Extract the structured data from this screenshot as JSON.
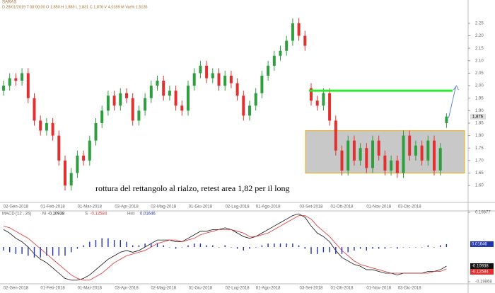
{
  "chart_data": [
    {
      "type": "candlestick",
      "title": "SARAS",
      "info": "D 28/01/2019  T 00:00:00  O 1,850  H 1,889  L 1,831  C 1,876  V 4,0189 M  Var% 1,5135",
      "categories": [
        null,
        null,
        "02-Gen-2018",
        null,
        null,
        null,
        null,
        null,
        "01-Feb-2018",
        null,
        null,
        null,
        null,
        null,
        "01-Mar-2018",
        null,
        null,
        null,
        null,
        null,
        "03-Apr-2018",
        null,
        null,
        null,
        null,
        null,
        "02-Mag-2018",
        null,
        null,
        null,
        null,
        null,
        "01-Giu-2018",
        null,
        null,
        null,
        null,
        null,
        "02-Lug-2018",
        null,
        null,
        null,
        null,
        "01-Ago-2018",
        null,
        null,
        null,
        null,
        null,
        null,
        "03-Set-2018",
        null,
        null,
        null,
        null,
        "01-Ott-2018",
        null,
        null,
        null,
        null,
        null,
        "01-Nov-2018",
        null,
        null,
        null,
        null,
        "03-Dic-2018",
        null,
        null,
        null,
        null,
        null,
        null
      ],
      "open": [
        1.98,
        2.0,
        2.03,
        2.02,
        2.05,
        1.95,
        1.86,
        1.82,
        1.85,
        1.8,
        1.7,
        1.6,
        1.65,
        1.72,
        1.7,
        1.78,
        1.85,
        1.9,
        1.96,
        1.92,
        1.97,
        1.95,
        1.86,
        1.9,
        1.95,
        2.0,
        2.02,
        1.96,
        1.98,
        1.92,
        1.9,
        2.0,
        2.05,
        2.08,
        2.03,
        2.05,
        2.0,
        2.04,
        2.01,
        1.96,
        1.88,
        1.92,
        1.97,
        2.04,
        2.08,
        2.12,
        2.14,
        2.18,
        2.25,
        2.2,
        1.99,
        1.94,
        1.92,
        1.97,
        1.86,
        1.74,
        1.66,
        1.78,
        1.7,
        1.75,
        1.67,
        1.78,
        1.72,
        1.66,
        1.7,
        1.65,
        1.8,
        1.72,
        1.76,
        1.7,
        1.78,
        1.66,
        1.85
      ],
      "high": [
        2.02,
        2.05,
        2.05,
        2.07,
        2.07,
        1.97,
        1.88,
        1.87,
        1.87,
        1.82,
        1.72,
        1.67,
        1.74,
        1.74,
        1.8,
        1.87,
        1.92,
        1.98,
        1.98,
        1.99,
        1.99,
        1.97,
        1.92,
        1.97,
        2.02,
        2.04,
        2.04,
        2.0,
        2.0,
        1.94,
        2.02,
        2.07,
        2.1,
        2.1,
        2.07,
        2.07,
        2.06,
        2.06,
        2.03,
        1.98,
        1.94,
        1.99,
        2.06,
        2.1,
        2.14,
        2.16,
        2.2,
        2.27,
        2.27,
        2.22,
        2.01,
        1.96,
        1.99,
        1.99,
        1.88,
        1.76,
        1.8,
        1.8,
        1.77,
        1.77,
        1.8,
        1.8,
        1.74,
        1.72,
        1.72,
        1.82,
        1.82,
        1.78,
        1.78,
        1.8,
        1.8,
        1.77,
        1.889
      ],
      "low": [
        1.96,
        1.98,
        2.0,
        2.0,
        1.93,
        1.84,
        1.8,
        1.8,
        1.78,
        1.68,
        1.58,
        1.58,
        1.63,
        1.68,
        1.68,
        1.76,
        1.83,
        1.88,
        1.9,
        1.9,
        1.93,
        1.84,
        1.84,
        1.88,
        1.93,
        1.98,
        1.94,
        1.94,
        1.9,
        1.88,
        1.88,
        1.98,
        2.03,
        2.01,
        2.01,
        1.98,
        1.98,
        1.99,
        1.94,
        1.86,
        1.86,
        1.9,
        1.95,
        2.02,
        2.06,
        2.1,
        2.12,
        2.16,
        2.18,
        2.14,
        1.92,
        1.9,
        1.9,
        1.84,
        1.72,
        1.64,
        1.64,
        1.68,
        1.68,
        1.65,
        1.65,
        1.7,
        1.64,
        1.64,
        1.63,
        1.63,
        1.7,
        1.7,
        1.68,
        1.68,
        1.64,
        1.64,
        1.831
      ],
      "close": [
        2.0,
        2.03,
        2.02,
        2.05,
        1.95,
        1.86,
        1.82,
        1.85,
        1.8,
        1.7,
        1.6,
        1.65,
        1.72,
        1.7,
        1.78,
        1.85,
        1.9,
        1.96,
        1.92,
        1.97,
        1.95,
        1.86,
        1.9,
        1.95,
        2.0,
        2.02,
        1.96,
        1.98,
        1.92,
        1.9,
        2.0,
        2.05,
        2.08,
        2.03,
        2.05,
        2.0,
        2.04,
        2.01,
        1.96,
        1.88,
        1.92,
        1.97,
        2.04,
        2.08,
        2.12,
        2.14,
        2.18,
        2.25,
        2.2,
        2.16,
        1.94,
        1.92,
        1.97,
        1.86,
        1.74,
        1.66,
        1.78,
        1.7,
        1.75,
        1.67,
        1.78,
        1.72,
        1.66,
        1.7,
        1.65,
        1.8,
        1.72,
        1.76,
        1.7,
        1.78,
        1.66,
        1.75,
        1.876
      ],
      "up_color": "#2e9e3e",
      "down_color": "#e0302f",
      "ylim": [
        1.535,
        2.315
      ],
      "yticks": [
        {
          "value": 1.6,
          "label": "1.60"
        },
        {
          "value": 1.65,
          "label": "1.65"
        },
        {
          "value": 1.7,
          "label": "1.70"
        },
        {
          "value": 1.75,
          "label": "1.75"
        },
        {
          "value": 1.8,
          "label": "1.80"
        },
        {
          "value": 1.85,
          "label": "1.85"
        },
        {
          "value": 1.9,
          "label": "1.90"
        },
        {
          "value": 1.95,
          "label": "1.95"
        },
        {
          "value": 2.0,
          "label": "2.00"
        },
        {
          "value": 2.05,
          "label": "2.05"
        },
        {
          "value": 2.1,
          "label": "2.10"
        },
        {
          "value": 2.15,
          "label": "2.15"
        },
        {
          "value": 2.2,
          "label": "2.20"
        },
        {
          "value": 2.25,
          "label": "2.25"
        }
      ],
      "last_price": {
        "value": 1.876,
        "label": "1,876"
      },
      "annotation": "rottura del rettangolo al rialzo, retest area 1,82 per il long",
      "zone": {
        "low": 1.65,
        "high": 1.82,
        "color": "#e8b830"
      },
      "resistance": {
        "value": 1.98,
        "color": "#2ee82e"
      }
    },
    {
      "type": "macd",
      "title": "MACD",
      "params": "(12 , 26)",
      "categories": [
        null,
        null,
        "02-Gen-2018",
        null,
        null,
        null,
        null,
        null,
        "01-Feb-2018",
        null,
        null,
        null,
        null,
        null,
        "01-Mar-2018",
        null,
        null,
        null,
        null,
        null,
        "03-Apr-2018",
        null,
        null,
        null,
        null,
        null,
        "02-Mag-2018",
        null,
        null,
        null,
        null,
        null,
        "01-Giu-2018",
        null,
        null,
        null,
        null,
        null,
        "02-Lug-2018",
        null,
        null,
        null,
        null,
        "01-Ago-2018",
        null,
        null,
        null,
        null,
        null,
        null,
        "03-Set-2018",
        null,
        null,
        null,
        null,
        "01-Ott-2018",
        null,
        null,
        null,
        null,
        null,
        "01-Nov-2018",
        null,
        null,
        null,
        null,
        "03-Dic-2018",
        null,
        null,
        null,
        null,
        null,
        null
      ],
      "ylim": [
        -0.19868,
        0.19877
      ],
      "yticks": [
        {
          "value": 0.19877,
          "label": "0.19877"
        },
        {
          "value": -0.19868,
          "label": "-0.19868"
        }
      ],
      "series": [
        {
          "name": "M",
          "kind": "line",
          "color": "#111111",
          "header_label": "-0,10938",
          "last_label": "-0.10938",
          "values": [
            0.1,
            0.08,
            0.05,
            0.03,
            0.0,
            -0.04,
            -0.07,
            -0.09,
            -0.12,
            -0.15,
            -0.18,
            -0.19,
            -0.19,
            -0.18,
            -0.16,
            -0.13,
            -0.1,
            -0.07,
            -0.05,
            -0.03,
            -0.02,
            -0.03,
            -0.02,
            0.0,
            0.02,
            0.04,
            0.04,
            0.04,
            0.03,
            0.03,
            0.05,
            0.07,
            0.09,
            0.09,
            0.1,
            0.1,
            0.11,
            0.1,
            0.08,
            0.06,
            0.05,
            0.06,
            0.08,
            0.1,
            0.12,
            0.14,
            0.16,
            0.18,
            0.19,
            0.17,
            0.12,
            0.08,
            0.06,
            0.03,
            -0.02,
            -0.06,
            -0.08,
            -0.1,
            -0.11,
            -0.13,
            -0.13,
            -0.14,
            -0.15,
            -0.15,
            -0.16,
            -0.15,
            -0.15,
            -0.15,
            -0.15,
            -0.14,
            -0.14,
            -0.13,
            -0.10938
          ]
        },
        {
          "name": "S",
          "kind": "line",
          "color": "#e0302f",
          "header_label": "-0,12584",
          "last_label": "-0.12584",
          "values": [
            0.12,
            0.11,
            0.09,
            0.07,
            0.05,
            0.02,
            -0.01,
            -0.04,
            -0.07,
            -0.1,
            -0.13,
            -0.16,
            -0.18,
            -0.19,
            -0.19,
            -0.17,
            -0.15,
            -0.12,
            -0.09,
            -0.07,
            -0.05,
            -0.04,
            -0.03,
            -0.02,
            0.0,
            0.02,
            0.03,
            0.04,
            0.04,
            0.03,
            0.04,
            0.05,
            0.07,
            0.08,
            0.09,
            0.1,
            0.1,
            0.1,
            0.09,
            0.08,
            0.06,
            0.06,
            0.07,
            0.08,
            0.1,
            0.12,
            0.14,
            0.16,
            0.18,
            0.18,
            0.16,
            0.12,
            0.09,
            0.06,
            0.02,
            -0.02,
            -0.05,
            -0.08,
            -0.1,
            -0.11,
            -0.12,
            -0.13,
            -0.14,
            -0.15,
            -0.15,
            -0.15,
            -0.15,
            -0.15,
            -0.15,
            -0.15,
            -0.14,
            -0.14,
            -0.12584
          ]
        },
        {
          "name": "Hist",
          "kind": "bar",
          "color": "#2233aa",
          "header_label": "0,01646",
          "last_label": "0.01646",
          "values": [
            -0.02,
            -0.03,
            -0.04,
            -0.04,
            -0.05,
            -0.06,
            -0.06,
            -0.05,
            -0.05,
            -0.05,
            -0.05,
            -0.03,
            -0.01,
            0.01,
            0.03,
            0.04,
            0.05,
            0.05,
            0.04,
            0.04,
            0.03,
            0.01,
            0.01,
            0.02,
            0.02,
            0.02,
            0.01,
            0.0,
            -0.01,
            0.0,
            0.01,
            0.02,
            0.02,
            0.01,
            0.01,
            0.0,
            0.01,
            0.0,
            -0.01,
            -0.02,
            -0.01,
            0.0,
            0.01,
            0.02,
            0.02,
            0.02,
            0.02,
            0.02,
            0.01,
            -0.01,
            -0.04,
            -0.04,
            -0.03,
            -0.03,
            -0.04,
            -0.04,
            -0.03,
            -0.02,
            -0.01,
            -0.02,
            -0.01,
            -0.01,
            -0.01,
            0.0,
            -0.01,
            0.0,
            0.0,
            0.0,
            0.0,
            0.01,
            0.0,
            0.01,
            0.01646
          ]
        }
      ]
    }
  ]
}
